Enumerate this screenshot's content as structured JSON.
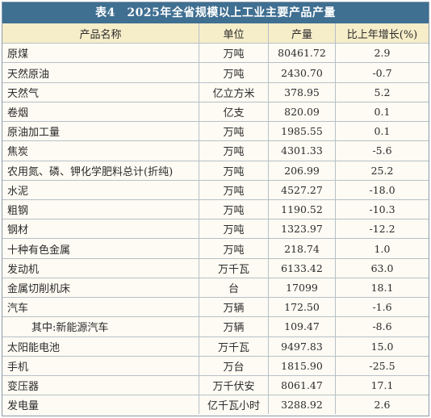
{
  "table": {
    "title": "表4　2025年全省规模以上工业主要产品产量",
    "columns": {
      "name": "产品名称",
      "unit": "单位",
      "output": "产量",
      "growth": "比上年增长(%)"
    },
    "rows": [
      {
        "name": "原煤",
        "unit": "万吨",
        "output": "80461.72",
        "growth": "2.9"
      },
      {
        "name": "天然原油",
        "unit": "万吨",
        "output": "2430.70",
        "growth": "-0.7"
      },
      {
        "name": "天然气",
        "unit": "亿立方米",
        "output": "378.95",
        "growth": "5.2"
      },
      {
        "name": "卷烟",
        "unit": "亿支",
        "output": "820.09",
        "growth": "0.1"
      },
      {
        "name": "原油加工量",
        "unit": "万吨",
        "output": "1985.55",
        "growth": "0.1"
      },
      {
        "name": "焦炭",
        "unit": "万吨",
        "output": "4301.33",
        "growth": "-5.6"
      },
      {
        "name": "农用氮、磷、钾化学肥料总计(折纯)",
        "unit": "万吨",
        "output": "206.99",
        "growth": "25.2"
      },
      {
        "name": "水泥",
        "unit": "万吨",
        "output": "4527.27",
        "growth": "-18.0"
      },
      {
        "name": "粗钢",
        "unit": "万吨",
        "output": "1190.52",
        "growth": "-10.3"
      },
      {
        "name": "钢材",
        "unit": "万吨",
        "output": "1323.97",
        "growth": "-12.2"
      },
      {
        "name": "十种有色金属",
        "unit": "万吨",
        "output": "218.74",
        "growth": "1.0"
      },
      {
        "name": "发动机",
        "unit": "万千瓦",
        "output": "6133.42",
        "growth": "63.0"
      },
      {
        "name": "金属切削机床",
        "unit": "台",
        "output": "17099",
        "growth": "18.1"
      },
      {
        "name": "汽车",
        "unit": "万辆",
        "output": "172.50",
        "growth": "-1.6"
      },
      {
        "name": "其中:新能源汽车",
        "unit": "万辆",
        "output": "109.47",
        "growth": "-8.6"
      },
      {
        "name": "太阳能电池",
        "unit": "万千瓦",
        "output": "9497.83",
        "growth": "15.0"
      },
      {
        "name": "手机",
        "unit": "万台",
        "output": "1815.90",
        "growth": "-25.5"
      },
      {
        "name": "变压器",
        "unit": "万千伏安",
        "output": "8061.47",
        "growth": "17.1"
      },
      {
        "name": "发电量",
        "unit": "亿千瓦小时",
        "output": "3288.92",
        "growth": "2.6"
      }
    ]
  }
}
